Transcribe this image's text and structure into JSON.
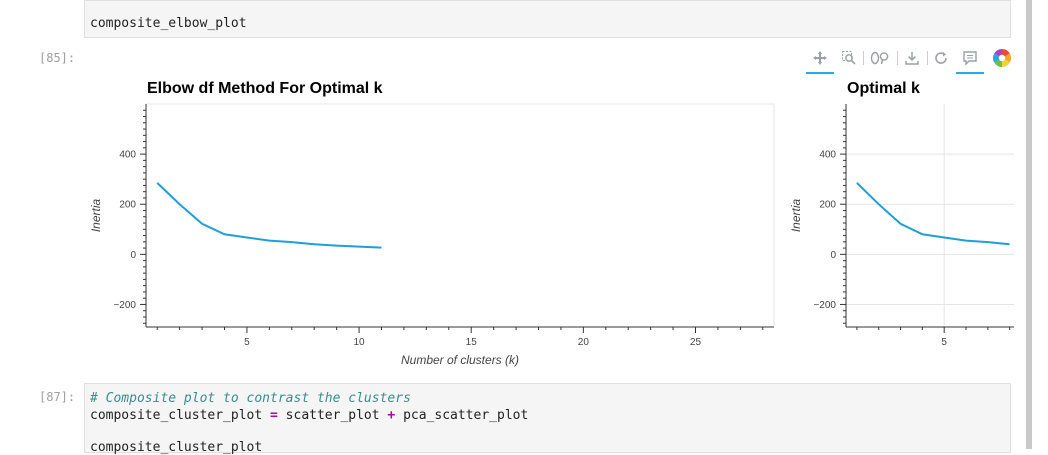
{
  "cells": {
    "top": {
      "code_line": "composite_elbow_plot"
    },
    "output_85": {
      "prompt": "[85]:"
    },
    "cell_87": {
      "prompt": "[87]:",
      "comment": "# Composite plot to contrast the clusters",
      "line2_left": "composite_cluster_plot ",
      "line2_op1": "=",
      "line2_mid": " scatter_plot ",
      "line2_op2": "+",
      "line2_right": " pca_scatter_plot",
      "line3": "composite_cluster_plot"
    }
  },
  "toolbar": {
    "tools": [
      "pan-tool",
      "box-zoom-tool",
      "wheel-zoom-tool",
      "save-tool",
      "reset-tool",
      "hover-tool",
      "bokeh-logo"
    ]
  },
  "colors": {
    "line": "#1f9fd8",
    "accent": "#26aae1"
  },
  "chart_data": [
    {
      "type": "line",
      "title": "Elbow df Method For Optimal k",
      "xlabel": "Number of clusters (k)",
      "ylabel": "Inertia",
      "x": [
        1,
        2,
        3,
        4,
        5,
        6,
        7,
        8,
        9,
        10,
        11
      ],
      "y": [
        285,
        200,
        122,
        80,
        67,
        55,
        49,
        40,
        35,
        31,
        27
      ],
      "xlim": [
        0.5,
        28.5
      ],
      "ylim": [
        -290,
        600
      ],
      "xticks": [
        "5",
        "10",
        "15",
        "20",
        "25"
      ],
      "yticks": [
        "400",
        "200",
        "0",
        "−200"
      ],
      "grid": false
    },
    {
      "type": "line",
      "title": "Optimal k",
      "ylabel": "Inertia",
      "x": [
        1,
        2,
        3,
        4,
        5,
        6,
        7,
        8
      ],
      "y": [
        285,
        200,
        122,
        80,
        67,
        55,
        49,
        40
      ],
      "xlim": [
        0.5,
        8.2
      ],
      "ylim": [
        -290,
        600
      ],
      "xticks": [
        "5"
      ],
      "yticks": [
        "400",
        "200",
        "0",
        "−200"
      ],
      "grid": true
    }
  ]
}
